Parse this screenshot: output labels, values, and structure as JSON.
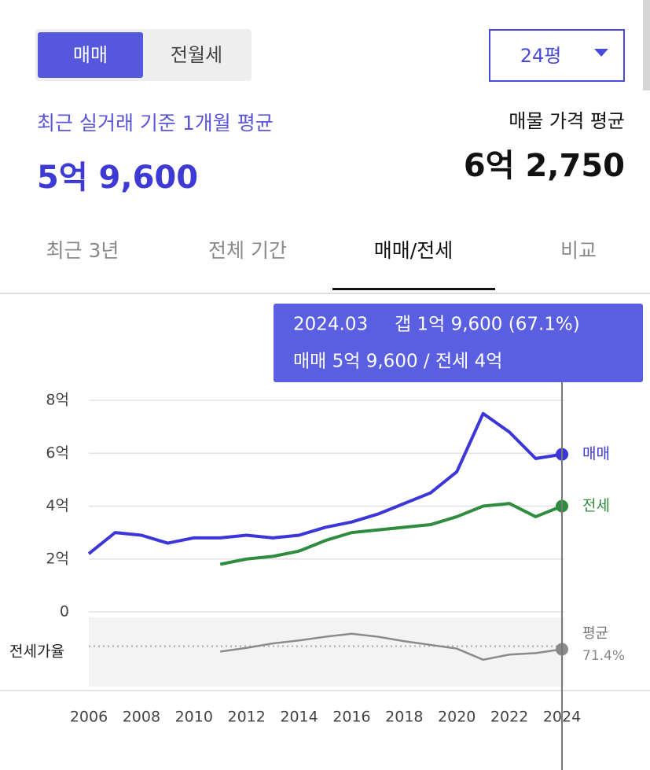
{
  "controls": {
    "deal_tabs": [
      "매매",
      "전월세"
    ],
    "size_select": "24평"
  },
  "summary": {
    "recent_label": "최근 실거래 기준 1개월 평균",
    "recent_value": "5억 9,600",
    "listing_label": "매물 가격 평균",
    "listing_value": "6억 2,750"
  },
  "period_tabs": [
    "최근 3년",
    "전체 기간",
    "매매/전세",
    "비교"
  ],
  "tooltip": {
    "date": "2024.03",
    "gap": "갭 1억 9,600 (67.1%)",
    "detail": "매매 5억 9,600 / 전세 4억"
  },
  "chart_data": {
    "type": "line",
    "x": [
      2006,
      2007,
      2008,
      2009,
      2010,
      2011,
      2012,
      2013,
      2014,
      2015,
      2016,
      2017,
      2018,
      2019,
      2020,
      2021,
      2022,
      2023,
      2024
    ],
    "xlim": [
      2006,
      2024
    ],
    "xticks": [
      2006,
      2008,
      2010,
      2012,
      2014,
      2016,
      2018,
      2020,
      2022,
      2024
    ],
    "ylim": [
      0,
      8
    ],
    "yticks": [
      0,
      {
        "value": 2,
        "label": "2억"
      },
      {
        "value": 4,
        "label": "4억"
      },
      {
        "value": 6,
        "label": "6억"
      },
      {
        "value": 8,
        "label": "8억"
      }
    ],
    "grid": true,
    "series": [
      {
        "name": "매매",
        "color": "#3b36d8",
        "values": [
          2.2,
          3.0,
          2.9,
          2.6,
          2.8,
          2.8,
          2.9,
          2.8,
          2.9,
          3.2,
          3.4,
          3.7,
          4.1,
          4.5,
          5.3,
          7.5,
          6.8,
          5.8,
          5.96
        ]
      },
      {
        "name": "전세",
        "color": "#2f8c3f",
        "values": [
          null,
          null,
          null,
          null,
          null,
          1.8,
          2.0,
          2.1,
          2.3,
          2.7,
          3.0,
          3.1,
          3.2,
          3.3,
          3.6,
          4.0,
          4.1,
          3.6,
          4.0
        ]
      }
    ],
    "ratio": {
      "name": "전세가율",
      "color": "#8a8a8a",
      "ylim": [
        20,
        110
      ],
      "values": [
        null,
        null,
        null,
        null,
        null,
        64,
        69,
        75,
        79,
        84,
        88,
        84,
        78,
        73,
        68,
        53,
        60,
        62,
        67.1
      ],
      "average_name": "평균",
      "average": 71.4,
      "average_label": "71.4%"
    }
  }
}
